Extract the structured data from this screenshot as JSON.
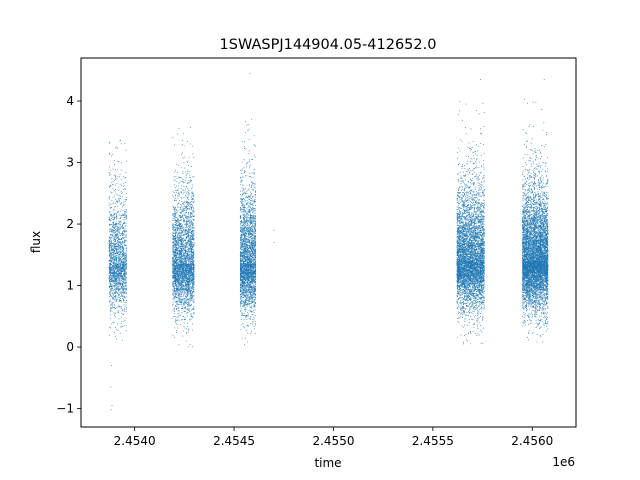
{
  "chart_data": {
    "type": "scatter",
    "title": "1SWASPJ144904.05-412652.0",
    "xlabel": "time",
    "ylabel": "flux",
    "x_offset_label": "1e6",
    "xlim": [
      2453730,
      2456220
    ],
    "ylim": [
      -1.3,
      4.7
    ],
    "x_ticks": [
      2454000,
      2454500,
      2455000,
      2455500,
      2456000
    ],
    "x_tick_labels": [
      "2.4540",
      "2.4545",
      "2.4550",
      "2.4555",
      "2.4560"
    ],
    "y_ticks": [
      -1,
      0,
      1,
      2,
      3,
      4
    ],
    "y_tick_labels": [
      "−1",
      "0",
      "1",
      "2",
      "3",
      "4"
    ],
    "grid": false,
    "legend": "none",
    "marker": "point",
    "color": "#1f77b4",
    "series": [
      {
        "clusters": [
          {
            "x_range": [
              2453870,
              2453960
            ],
            "median_flux": 1.35,
            "flux_range": [
              0.1,
              3.4
            ],
            "n_points": 1800
          },
          {
            "x_range": [
              2454190,
              2454300
            ],
            "median_flux": 1.35,
            "flux_range": [
              0.0,
              3.9
            ],
            "n_points": 3200
          },
          {
            "x_range": [
              2454530,
              2454610
            ],
            "median_flux": 1.35,
            "flux_range": [
              0.0,
              4.45
            ],
            "n_points": 2800
          },
          {
            "x_range": [
              2455620,
              2455760
            ],
            "median_flux": 1.4,
            "flux_range": [
              0.05,
              4.1
            ],
            "n_points": 5200
          },
          {
            "x_range": [
              2455950,
              2456080
            ],
            "median_flux": 1.4,
            "flux_range": [
              0.05,
              4.35
            ],
            "n_points": 6200
          }
        ],
        "outliers": [
          [
            2453880,
            -0.65
          ],
          [
            2453882,
            -1.02
          ],
          [
            2453884,
            -0.3
          ],
          [
            2453886,
            -0.95
          ],
          [
            2454700,
            1.9
          ],
          [
            2454702,
            1.7
          ],
          [
            2454580,
            4.45
          ],
          [
            2455740,
            4.35
          ],
          [
            2456060,
            4.35
          ]
        ]
      }
    ]
  }
}
